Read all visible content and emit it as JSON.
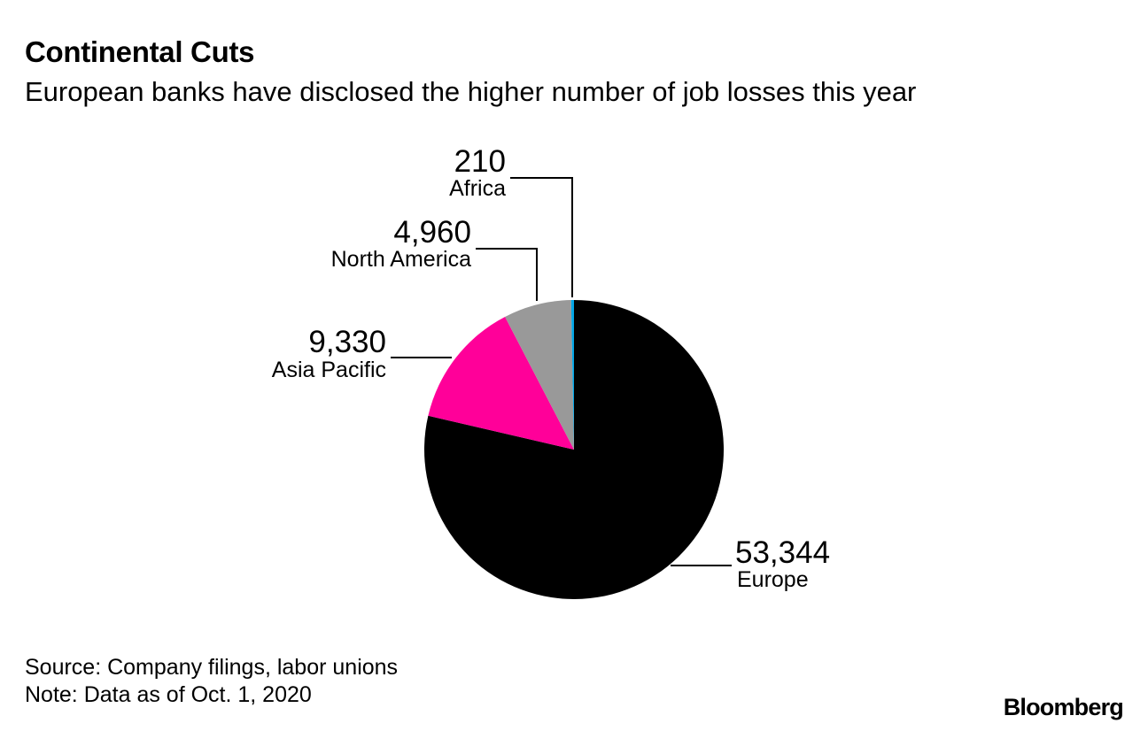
{
  "header": {
    "title": "Continental Cuts",
    "subtitle": "European banks have disclosed the higher number of job losses this year"
  },
  "footer": {
    "source": "Source: Company filings, labor unions",
    "note": "Note: Data as of Oct. 1, 2020",
    "brand": "Bloomberg"
  },
  "chart_data": {
    "type": "pie",
    "title": "Continental Cuts",
    "subtitle": "European banks have disclosed the higher number of job losses this year",
    "start_angle_deg": 0,
    "direction": "clockwise",
    "slices": [
      {
        "name": "Europe",
        "value": 53344,
        "value_label": "53,344",
        "color": "#000000"
      },
      {
        "name": "Asia Pacific",
        "value": 9330,
        "value_label": "9,330",
        "color": "#ff0099"
      },
      {
        "name": "North America",
        "value": 4960,
        "value_label": "4,960",
        "color": "#999999"
      },
      {
        "name": "Africa",
        "value": 210,
        "value_label": "210",
        "color": "#00a6e6"
      }
    ]
  }
}
